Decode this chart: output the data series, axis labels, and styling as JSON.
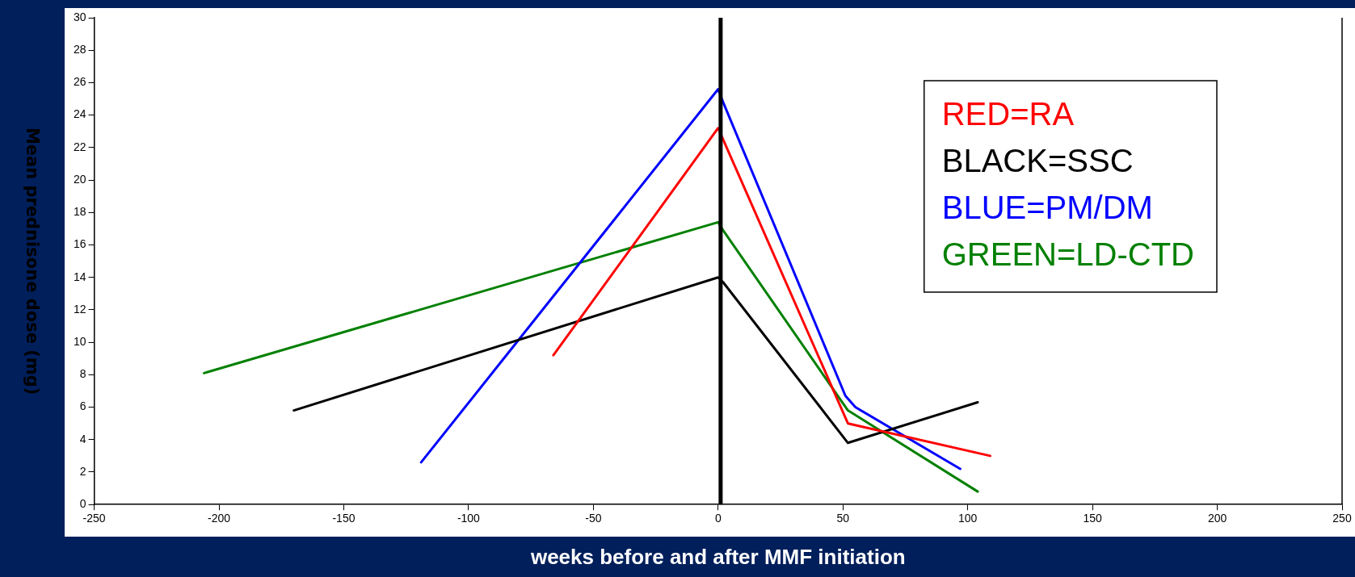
{
  "chart_data": {
    "type": "line",
    "xlabel": "weeks before and after MMF initiation",
    "ylabel": "Mean prednisone dose (mg)",
    "xlim": [
      -250,
      250
    ],
    "xticks": [
      -250,
      -200,
      -150,
      -100,
      -50,
      0,
      50,
      100,
      150,
      200,
      250
    ],
    "ylim": [
      0,
      30
    ],
    "yticks": [
      0,
      2,
      4,
      6,
      8,
      10,
      12,
      14,
      16,
      18,
      20,
      22,
      24,
      26,
      28,
      30
    ],
    "grid": false,
    "legend": "top right",
    "marker": "none",
    "line_style": "solid",
    "ref_lines": [
      {
        "axis": "x",
        "value": 1,
        "color": "#000000"
      }
    ],
    "series": [
      {
        "name": "RED=RA",
        "color": "#ff0000",
        "x": [
          -66,
          0,
          2,
          52,
          109
        ],
        "values": [
          9.2,
          23.2,
          22.5,
          5.0,
          3.0
        ]
      },
      {
        "name": "BLACK=SSC",
        "color": "#000000",
        "x": [
          -170,
          0,
          2,
          52,
          104
        ],
        "values": [
          5.8,
          14.0,
          13.7,
          3.8,
          6.3
        ]
      },
      {
        "name": "BLUE=PM/DM",
        "color": "#0000ff",
        "x": [
          -119,
          0,
          2,
          51,
          55,
          97
        ],
        "values": [
          2.6,
          25.6,
          24.8,
          6.7,
          6.0,
          2.2
        ]
      },
      {
        "name": "GREEN=LD-CTD",
        "color": "#008000",
        "x": [
          -206,
          0,
          2,
          52,
          104
        ],
        "values": [
          8.1,
          17.4,
          16.9,
          5.8,
          0.8
        ]
      }
    ]
  }
}
